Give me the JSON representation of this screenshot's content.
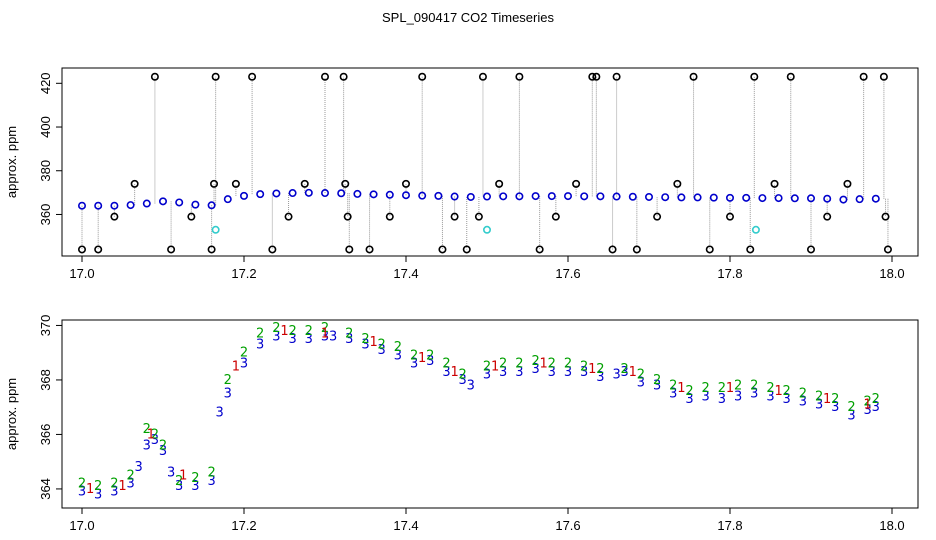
{
  "title": "SPL_090417  CO2 Timeseries",
  "colors": {
    "axis": "#000000",
    "outlier": "#000000",
    "series_blue": "#0000cc",
    "series_green": "#00a000",
    "series_red": "#cc0000",
    "series_cyan": "#33cccc",
    "connector": "#999999"
  },
  "chart_data": [
    {
      "type": "scatter",
      "ylabel": "approx. ppm",
      "xlabel": "",
      "xlim": [
        17.0,
        18.0
      ],
      "ylim": [
        341,
        427
      ],
      "xticks": [
        "17.0",
        "17.2",
        "17.4",
        "17.6",
        "17.8",
        "18.0"
      ],
      "yticks": [
        "360",
        "380",
        "400",
        "420"
      ],
      "grid": false,
      "series": [
        {
          "marker": "circle",
          "color": "blue",
          "values_note": "",
          "x": [
            17.0,
            17.02,
            17.04,
            17.06,
            17.08,
            17.1,
            17.12,
            17.14,
            17.16,
            17.18,
            17.2,
            17.22,
            17.24,
            17.26,
            17.28,
            17.3,
            17.32,
            17.34,
            17.36,
            17.38,
            17.4,
            17.42,
            17.44,
            17.46,
            17.48,
            17.5,
            17.52,
            17.54,
            17.56,
            17.58,
            17.6,
            17.62,
            17.64,
            17.66,
            17.68,
            17.7,
            17.72,
            17.74,
            17.76,
            17.78,
            17.8,
            17.82,
            17.84,
            17.86,
            17.88,
            17.9,
            17.92,
            17.94,
            17.96,
            17.98
          ],
          "y": [
            364,
            364,
            364,
            364.3,
            365,
            366,
            365.5,
            364.5,
            364.2,
            367,
            368.5,
            369.3,
            369.6,
            369.8,
            369.9,
            369.8,
            369.7,
            369.4,
            369.2,
            369,
            368.8,
            368.6,
            368.5,
            368.2,
            368,
            368.2,
            368.3,
            368.3,
            368.4,
            368.4,
            368.4,
            368.3,
            368.3,
            368.2,
            368.1,
            368,
            367.9,
            367.8,
            367.8,
            367.7,
            367.6,
            367.6,
            367.5,
            367.5,
            367.4,
            367.4,
            367.2,
            366.8,
            367,
            367.2
          ]
        },
        {
          "marker": "open-circle",
          "color": "black",
          "x": [
            17.0,
            17.02,
            17.04,
            17.065,
            17.09,
            17.11,
            17.135,
            17.16,
            17.163,
            17.165,
            17.19,
            17.21,
            17.235,
            17.255,
            17.275,
            17.3,
            17.323,
            17.325,
            17.328,
            17.33,
            17.355,
            17.38,
            17.4,
            17.42,
            17.445,
            17.46,
            17.475,
            17.49,
            17.495,
            17.515,
            17.54,
            17.565,
            17.585,
            17.61,
            17.63,
            17.635,
            17.655,
            17.66,
            17.685,
            17.71,
            17.735,
            17.755,
            17.775,
            17.8,
            17.825,
            17.83,
            17.855,
            17.875,
            17.9,
            17.92,
            17.945,
            17.965,
            17.99,
            17.992,
            17.995
          ],
          "y": [
            344,
            344,
            359,
            374,
            423,
            344,
            359,
            344,
            374,
            423,
            374,
            423,
            344,
            359,
            374,
            423,
            423,
            374,
            359,
            344,
            344,
            359,
            374,
            423,
            344,
            359,
            344,
            359,
            423,
            374,
            423,
            344,
            359,
            374,
            423,
            423,
            344,
            423,
            344,
            359,
            374,
            423,
            344,
            359,
            344,
            423,
            374,
            423,
            344,
            359,
            374,
            423,
            423,
            359,
            344
          ]
        },
        {
          "marker": "circle",
          "color": "cyan",
          "x": [
            17.165,
            17.5,
            17.832
          ],
          "y": [
            353,
            353,
            353
          ]
        }
      ]
    },
    {
      "type": "scatter",
      "ylabel": "approx. ppm",
      "xlabel": "",
      "xlim": [
        17.0,
        18.0
      ],
      "ylim": [
        363.3,
        370.2
      ],
      "xticks": [
        "17.0",
        "17.2",
        "17.4",
        "17.6",
        "17.8",
        "18.0"
      ],
      "yticks": [
        "364",
        "366",
        "368",
        "370"
      ],
      "grid": false,
      "series": [
        {
          "marker": "digit-3",
          "color": "blue",
          "x": [
            17.0,
            17.02,
            17.04,
            17.06,
            17.07,
            17.08,
            17.09,
            17.1,
            17.11,
            17.12,
            17.14,
            17.16,
            17.17,
            17.18,
            17.2,
            17.22,
            17.24,
            17.26,
            17.28,
            17.3,
            17.31,
            17.33,
            17.35,
            17.37,
            17.39,
            17.41,
            17.43,
            17.45,
            17.47,
            17.48,
            17.5,
            17.52,
            17.54,
            17.56,
            17.58,
            17.6,
            17.62,
            17.64,
            17.66,
            17.67,
            17.69,
            17.71,
            17.73,
            17.75,
            17.77,
            17.79,
            17.81,
            17.83,
            17.85,
            17.87,
            17.89,
            17.91,
            17.93,
            17.95,
            17.97,
            17.98
          ],
          "y": [
            363.9,
            363.8,
            363.9,
            364.2,
            364.8,
            365.6,
            365.8,
            365.4,
            364.6,
            364.1,
            364.1,
            364.3,
            366.8,
            367.5,
            368.6,
            369.3,
            369.6,
            369.5,
            369.5,
            369.6,
            369.6,
            369.5,
            369.3,
            369.1,
            368.9,
            368.6,
            368.7,
            368.3,
            368,
            367.8,
            368.2,
            368.3,
            368.3,
            368.4,
            368.3,
            368.3,
            368.3,
            368.1,
            368.2,
            368.3,
            367.9,
            367.8,
            367.5,
            367.3,
            367.4,
            367.3,
            367.4,
            367.5,
            367.4,
            367.3,
            367.2,
            367.1,
            367.0,
            366.7,
            366.9,
            367.0
          ]
        },
        {
          "marker": "digit-2",
          "color": "green",
          "x": [
            17.0,
            17.02,
            17.04,
            17.06,
            17.08,
            17.09,
            17.1,
            17.12,
            17.14,
            17.16,
            17.18,
            17.2,
            17.22,
            17.24,
            17.26,
            17.28,
            17.3,
            17.33,
            17.35,
            17.37,
            17.39,
            17.41,
            17.43,
            17.45,
            17.47,
            17.5,
            17.52,
            17.54,
            17.56,
            17.58,
            17.6,
            17.62,
            17.64,
            17.67,
            17.69,
            17.71,
            17.73,
            17.75,
            17.77,
            17.79,
            17.81,
            17.83,
            17.85,
            17.87,
            17.89,
            17.91,
            17.93,
            17.95,
            17.97,
            17.98
          ],
          "y": [
            364.2,
            364.1,
            364.2,
            364.5,
            366.2,
            366.0,
            365.6,
            364.3,
            364.4,
            364.6,
            368.0,
            369.0,
            369.7,
            369.9,
            369.8,
            369.8,
            369.9,
            369.7,
            369.5,
            369.3,
            369.2,
            368.9,
            368.9,
            368.6,
            368.2,
            368.5,
            368.6,
            368.6,
            368.7,
            368.6,
            368.6,
            368.5,
            368.4,
            368.4,
            368.2,
            368.0,
            367.8,
            367.6,
            367.7,
            367.7,
            367.8,
            367.8,
            367.7,
            367.6,
            367.5,
            367.4,
            367.3,
            367.0,
            367.2,
            367.3
          ]
        },
        {
          "marker": "digit-1",
          "color": "red",
          "x": [
            17.01,
            17.05,
            17.085,
            17.125,
            17.19,
            17.25,
            17.3,
            17.36,
            17.42,
            17.46,
            17.51,
            17.57,
            17.63,
            17.68,
            17.74,
            17.8,
            17.86,
            17.92,
            17.97
          ],
          "y": [
            364.0,
            364.1,
            366.0,
            364.5,
            368.5,
            369.8,
            369.7,
            369.4,
            368.8,
            368.3,
            368.5,
            368.6,
            368.4,
            368.3,
            367.7,
            367.7,
            367.6,
            367.3,
            367.1
          ]
        }
      ]
    }
  ]
}
